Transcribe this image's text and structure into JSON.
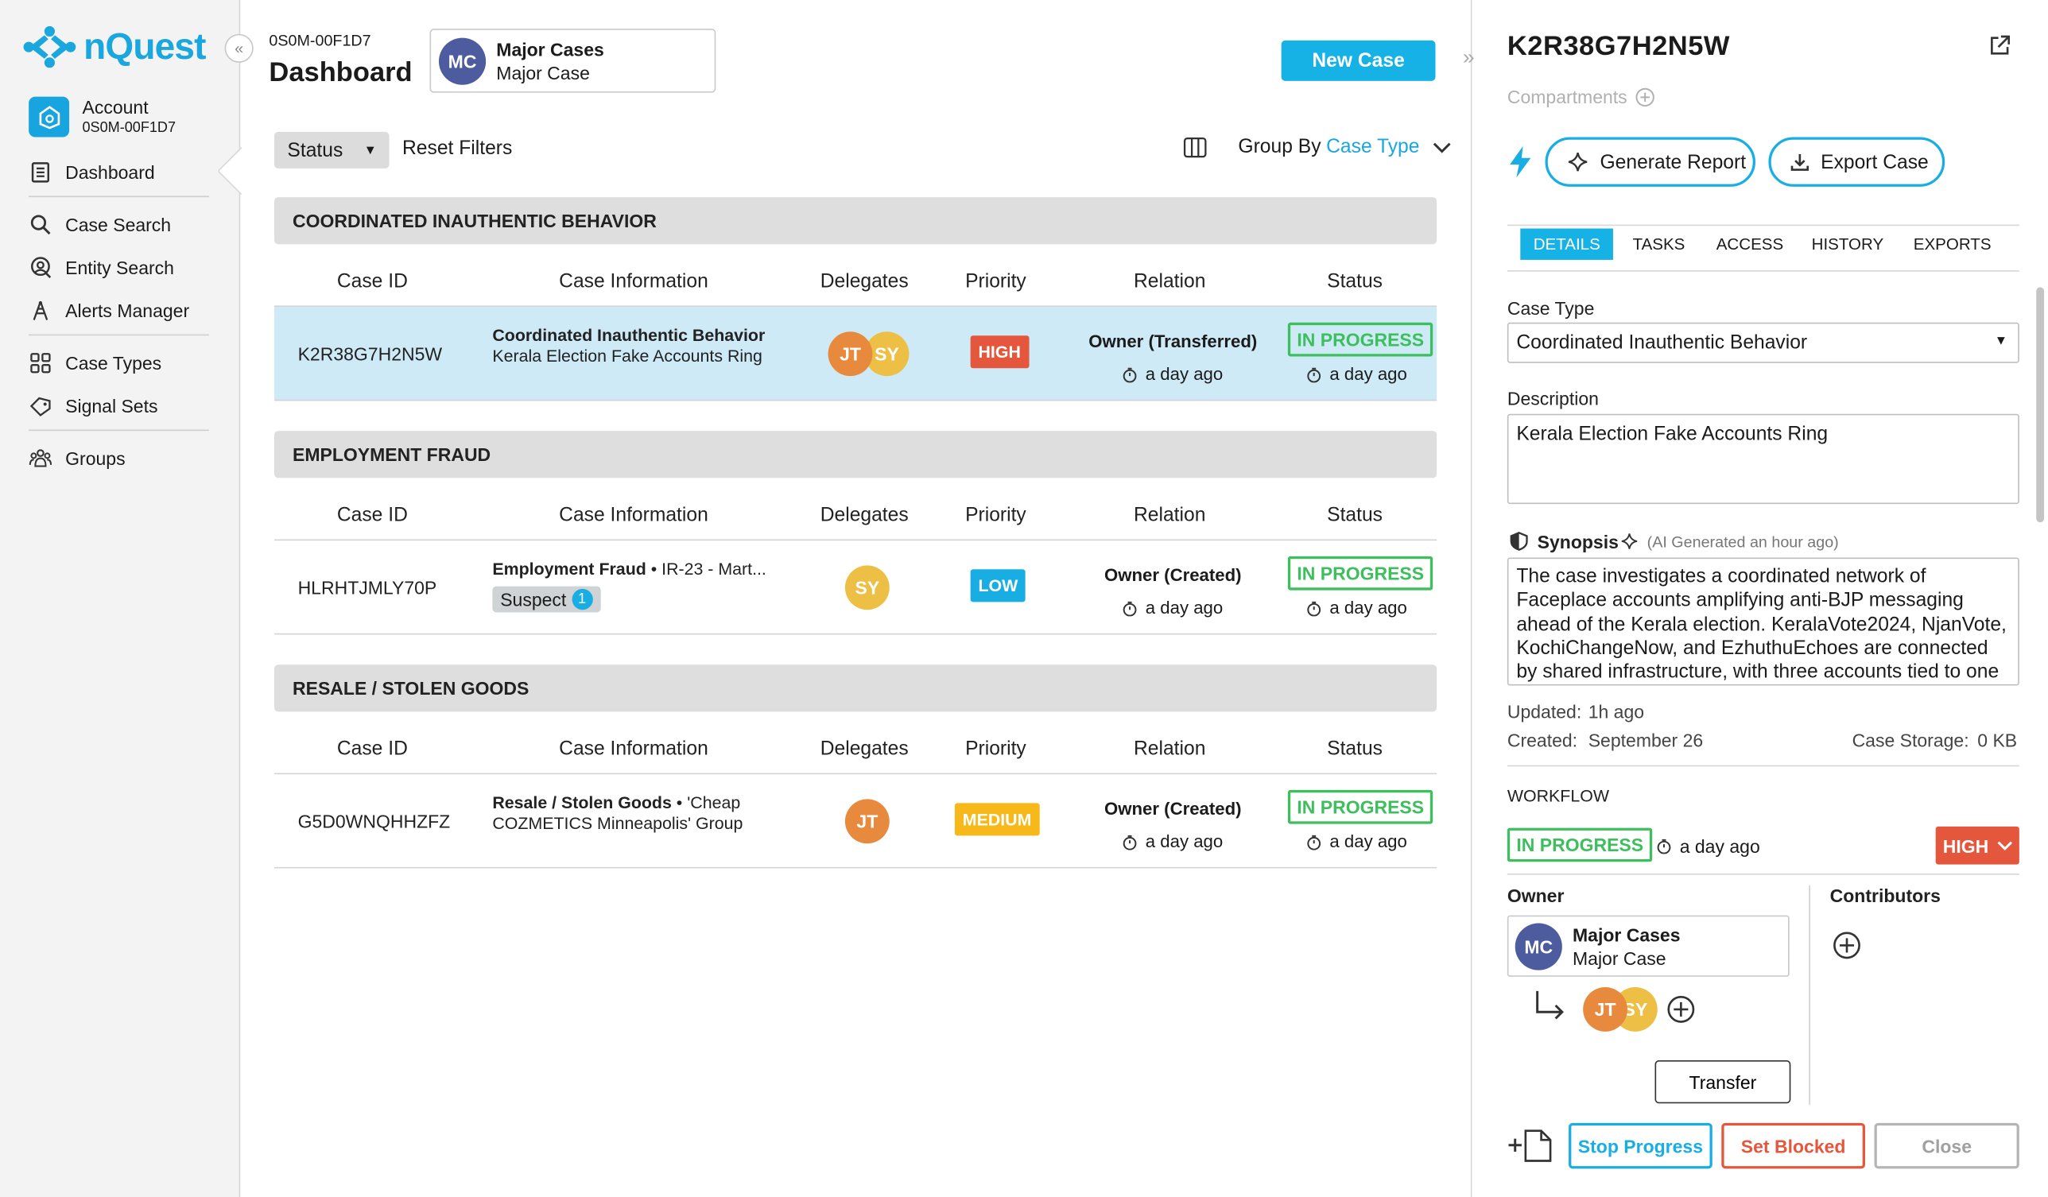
{
  "app": {
    "name": "nQuest"
  },
  "sidebar": {
    "account": {
      "label": "Account",
      "id": "0S0M-00F1D7"
    },
    "items": [
      {
        "label": "Dashboard",
        "icon": "document-icon"
      },
      {
        "label": "Case Search",
        "icon": "search-icon"
      },
      {
        "label": "Entity Search",
        "icon": "entity-search-icon"
      },
      {
        "label": "Alerts Manager",
        "icon": "alert-tower-icon"
      },
      {
        "label": "Case Types",
        "icon": "grid-icon"
      },
      {
        "label": "Signal Sets",
        "icon": "tag-icon"
      },
      {
        "label": "Groups",
        "icon": "groups-icon"
      }
    ]
  },
  "header": {
    "org_id": "0S0M-00F1D7",
    "title": "Dashboard",
    "user": {
      "initials": "MC",
      "name": "Major Cases",
      "role": "Major Case"
    },
    "new_case_label": "New Case"
  },
  "filters": {
    "status_label": "Status",
    "reset_label": "Reset Filters",
    "group_by_label": "Group By",
    "group_by_value": "Case Type"
  },
  "columns": [
    "Case ID",
    "Case Information",
    "Delegates",
    "Priority",
    "Relation",
    "Status"
  ],
  "groups": [
    {
      "title": "COORDINATED INAUTHENTIC BEHAVIOR",
      "case": {
        "id": "K2R38G7H2N5W",
        "type": "Coordinated Inauthentic Behavior",
        "info": "Kerala Election Fake Accounts Ring",
        "delegates": [
          "JT",
          "SY"
        ],
        "priority": "HIGH",
        "relation": "Owner (Transferred)",
        "relation_time": "a day ago",
        "status": "IN PROGRESS",
        "status_time": "a day ago"
      }
    },
    {
      "title": "EMPLOYMENT FRAUD",
      "case": {
        "id": "HLRHTJMLY70P",
        "type": "Employment Fraud",
        "info": " • IR-23 - Mart...",
        "tag": "Suspect",
        "tag_count": "1",
        "delegates": [
          "SY"
        ],
        "priority": "LOW",
        "relation": "Owner (Created)",
        "relation_time": "a day ago",
        "status": "IN PROGRESS",
        "status_time": "a day ago"
      }
    },
    {
      "title": "RESALE / STOLEN GOODS",
      "case": {
        "id": "G5D0WNQHHZFZ",
        "type": "Resale / Stolen Goods",
        "info_line1": " • 'Cheap",
        "info_line2": "COZMETICS Minneapolis' Group",
        "delegates": [
          "JT"
        ],
        "priority": "MEDIUM",
        "relation": "Owner (Created)",
        "relation_time": "a day ago",
        "status": "IN PROGRESS",
        "status_time": "a day ago"
      }
    }
  ],
  "panel": {
    "case_id": "K2R38G7H2N5W",
    "compartments_label": "Compartments",
    "generate_report_label": "Generate Report",
    "export_case_label": "Export Case",
    "tabs": [
      "DETAILS",
      "TASKS",
      "ACCESS",
      "HISTORY",
      "EXPORTS"
    ],
    "case_type_label": "Case Type",
    "case_type_value": "Coordinated Inauthentic Behavior",
    "description_label": "Description",
    "description_value": "Kerala Election Fake Accounts Ring",
    "synopsis_label": "Synopsis",
    "synopsis_note": "(AI Generated an hour ago)",
    "synopsis_text": "The case investigates a coordinated network of Faceplace accounts amplifying anti-BJP messaging ahead of the Kerala election. KeralaVote2024, NjanVote, KochiChangeNow, and EzhuthuEchoes are connected by shared infrastructure, with three accounts tied to one",
    "updated_label": "Updated:",
    "updated_value": "1h ago",
    "created_label": "Created:",
    "created_value": "September 26",
    "storage_label": "Case Storage:",
    "storage_value": "0 KB",
    "workflow_label": "WORKFLOW",
    "workflow_status": "IN PROGRESS",
    "workflow_time": "a day ago",
    "priority": "HIGH",
    "owner_label": "Owner",
    "owner_initials": "MC",
    "owner_name": "Major Cases",
    "owner_role": "Major Case",
    "delegates": [
      "JT",
      "SY"
    ],
    "contributors_label": "Contributors",
    "transfer_label": "Transfer",
    "stop_label": "Stop Progress",
    "blocked_label": "Set Blocked",
    "close_label": "Close"
  },
  "colors": {
    "accent": "#16b2e6",
    "high": "#e4573d",
    "low": "#19aee3",
    "medium": "#f7b819",
    "in_progress": "#3cbf5c",
    "jt": "#e88a3e",
    "sy": "#edbf45"
  }
}
